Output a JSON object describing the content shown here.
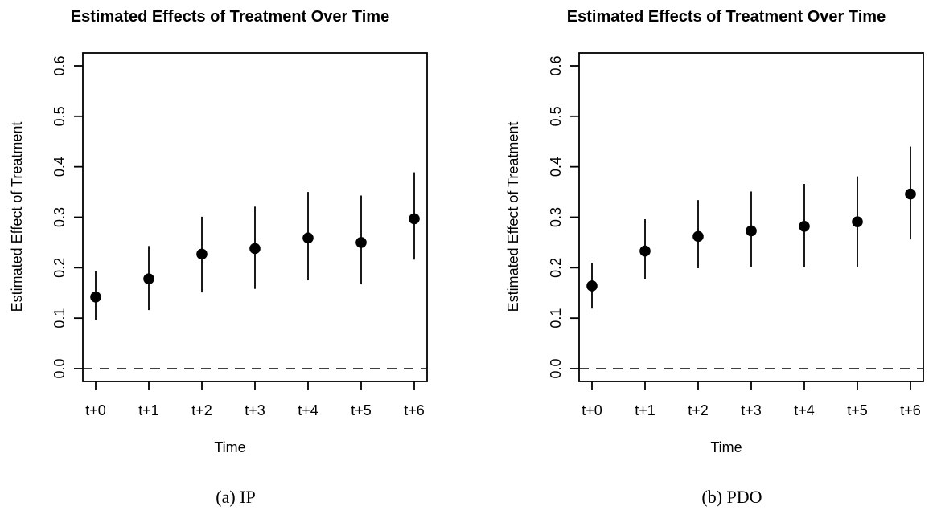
{
  "figure": {
    "background": "#ffffff",
    "foreground": "#000000"
  },
  "chart_data": [
    {
      "type": "scatter",
      "caption": "(a) IP",
      "title": "Estimated Effects of Treatment Over Time",
      "xlabel": "Time",
      "ylabel": "Estimated Effect of Treatment",
      "categories": [
        "t+0",
        "t+1",
        "t+2",
        "t+3",
        "t+4",
        "t+5",
        "t+6"
      ],
      "ylim": [
        0,
        0.6
      ],
      "ytick_labels": [
        "0.0",
        "0.1",
        "0.2",
        "0.3",
        "0.4",
        "0.5",
        "0.6"
      ],
      "grid": false,
      "legend": false,
      "marker": "filled-circle",
      "color": "#000000",
      "reference_line": {
        "value": 0,
        "style": "dashed"
      },
      "series": [
        {
          "name": "estimate",
          "values": [
            0.142,
            0.178,
            0.227,
            0.238,
            0.259,
            0.25,
            0.297
          ]
        },
        {
          "name": "ci_lower",
          "values": [
            0.097,
            0.116,
            0.151,
            0.158,
            0.175,
            0.167,
            0.216
          ]
        },
        {
          "name": "ci_upper",
          "values": [
            0.193,
            0.243,
            0.301,
            0.321,
            0.35,
            0.343,
            0.389
          ]
        }
      ]
    },
    {
      "type": "scatter",
      "caption": "(b) PDO",
      "title": "Estimated Effects of Treatment Over Time",
      "xlabel": "Time",
      "ylabel": "Estimated Effect of Treatment",
      "categories": [
        "t+0",
        "t+1",
        "t+2",
        "t+3",
        "t+4",
        "t+5",
        "t+6"
      ],
      "ylim": [
        0,
        0.6
      ],
      "ytick_labels": [
        "0.0",
        "0.1",
        "0.2",
        "0.3",
        "0.4",
        "0.5",
        "0.6"
      ],
      "grid": false,
      "legend": false,
      "marker": "filled-circle",
      "color": "#000000",
      "reference_line": {
        "value": 0,
        "style": "dashed"
      },
      "series": [
        {
          "name": "estimate",
          "values": [
            0.164,
            0.233,
            0.262,
            0.273,
            0.282,
            0.291,
            0.346
          ]
        },
        {
          "name": "ci_lower",
          "values": [
            0.119,
            0.178,
            0.199,
            0.201,
            0.202,
            0.201,
            0.256
          ]
        },
        {
          "name": "ci_upper",
          "values": [
            0.21,
            0.296,
            0.334,
            0.351,
            0.366,
            0.381,
            0.44
          ]
        }
      ]
    }
  ]
}
